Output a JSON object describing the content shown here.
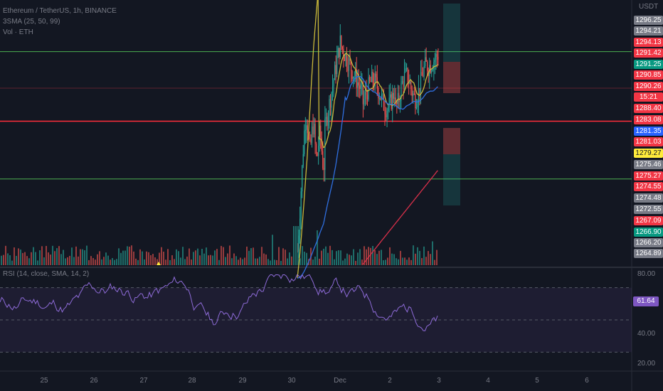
{
  "header": {
    "symbol_line": "Ethereum / TetherUS, 1h, BINANCE",
    "sma_line": "3SMA (25, 50, 99)",
    "vol_line": "Vol · ETH",
    "rsi_line": "RSI (14, close, SMA, 14, 2)",
    "currency": "USDT"
  },
  "price_labels": [
    {
      "text": "1296.25",
      "bg": "#787b86"
    },
    {
      "text": "1294.21",
      "bg": "#787b86"
    },
    {
      "text": "1294.13",
      "bg": "#f23645"
    },
    {
      "text": "1291.42",
      "bg": "#f23645"
    },
    {
      "text": "1291.25",
      "bg": "#089981"
    },
    {
      "text": "1290.85",
      "bg": "#f23645"
    },
    {
      "text": "1290.26",
      "bg": "#f23645"
    },
    {
      "text": "15:21",
      "bg": "#f23645"
    },
    {
      "text": "1288.40",
      "bg": "#f23645"
    },
    {
      "text": "1283.08",
      "bg": "#f23645"
    },
    {
      "text": "1281.35",
      "bg": "#2962ff"
    },
    {
      "text": "1281.03",
      "bg": "#f23645"
    },
    {
      "text": "1279.27",
      "bg": "#ffeb3b"
    },
    {
      "text": "1275.46",
      "bg": "#787b86"
    },
    {
      "text": "1275.27",
      "bg": "#f23645"
    },
    {
      "text": "1274.55",
      "bg": "#f23645"
    },
    {
      "text": "1274.48",
      "bg": "#787b86"
    },
    {
      "text": "1272.55",
      "bg": "#787b86"
    },
    {
      "text": "1267.09",
      "bg": "#f23645"
    },
    {
      "text": "1266.90",
      "bg": "#089981"
    },
    {
      "text": "1266.20",
      "bg": "#787b86"
    },
    {
      "text": "1264.89",
      "bg": "#787b86"
    }
  ],
  "rsi_axis": [
    "80.00",
    "40.00",
    "20.00"
  ],
  "rsi_value": "61.64",
  "colors": {
    "up": "#26a69a",
    "down": "#ef5350",
    "sma25": "#c9b83a",
    "sma50": "#2f6fe0",
    "sma99": "#d9304a",
    "green_line": "#4caf50",
    "red_line": "#ff2e3b",
    "rsi": "#8e6bd8"
  },
  "chart_data": {
    "type": "candlestick",
    "x_ticks": [
      "25",
      "26",
      "27",
      "28",
      "29",
      "30",
      "Dec",
      "2",
      "3",
      "4",
      "5",
      "6"
    ],
    "horizontal_levels": {
      "green_upper": 1291.25,
      "red": 1281.03,
      "green_lower": 1272.55
    },
    "price_range": [
      1260,
      1298
    ],
    "rsi_range": [
      20,
      80
    ],
    "rsi_bands": [
      70,
      50,
      30
    ],
    "rsi_current": 61.64
  }
}
